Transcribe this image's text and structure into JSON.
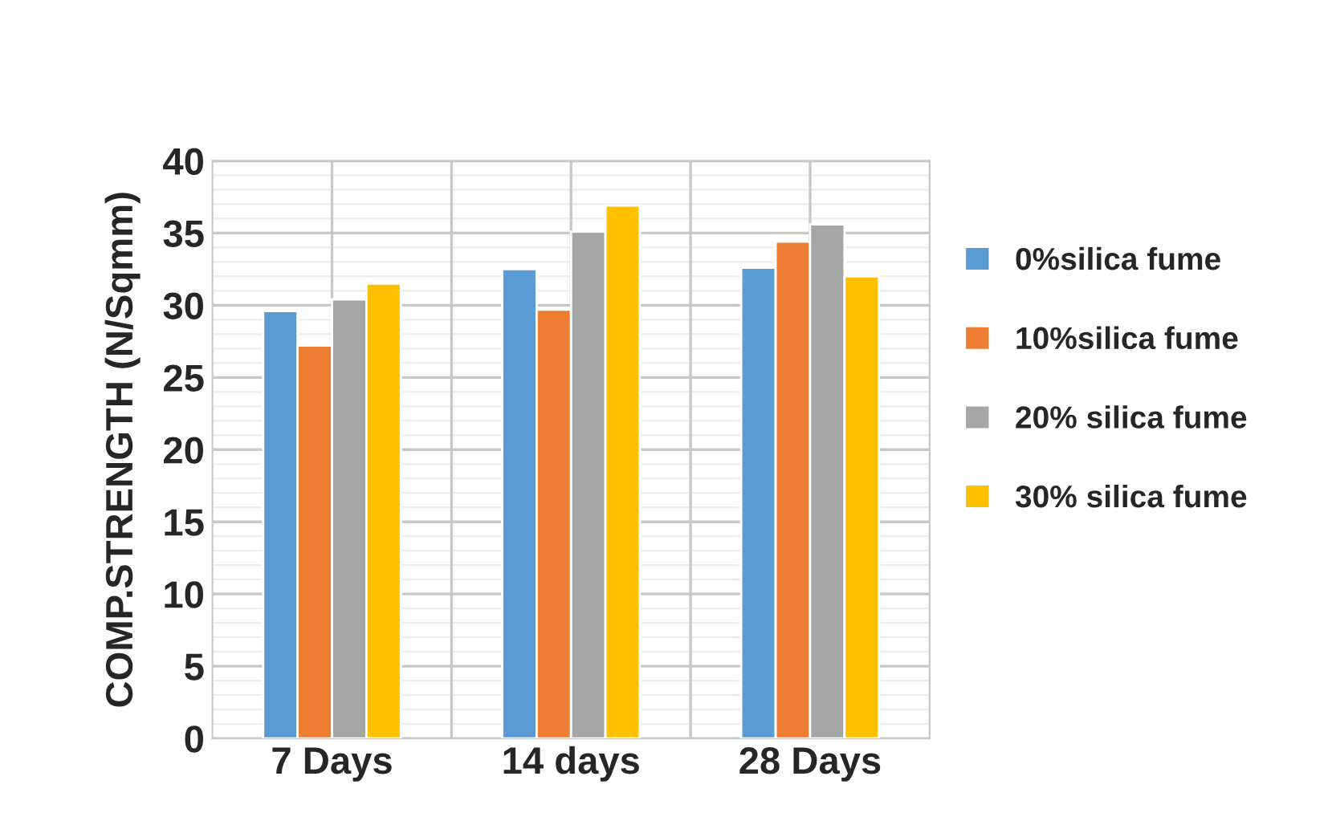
{
  "chart_data": {
    "type": "bar",
    "ylabel": "COMP.STRENGTH (N/Sqmm)",
    "categories": [
      "7 Days",
      "14 days",
      "28 Days"
    ],
    "series": [
      {
        "name": "0%silica fume",
        "color": "#5b9bd5",
        "values": [
          29.6,
          32.5,
          32.6
        ]
      },
      {
        "name": "10%silica fume",
        "color": "#ed7d31",
        "values": [
          27.2,
          29.7,
          34.4
        ]
      },
      {
        "name": "20% silica fume",
        "color": "#a5a5a5",
        "values": [
          30.4,
          35.1,
          35.6
        ]
      },
      {
        "name": "30% silica fume",
        "color": "#ffc000",
        "values": [
          31.5,
          36.9,
          32.0
        ]
      }
    ],
    "ylim": [
      0,
      40
    ],
    "yticks": [
      0,
      5,
      10,
      15,
      20,
      25,
      30,
      35,
      40
    ],
    "grid": true,
    "legend": "right"
  }
}
